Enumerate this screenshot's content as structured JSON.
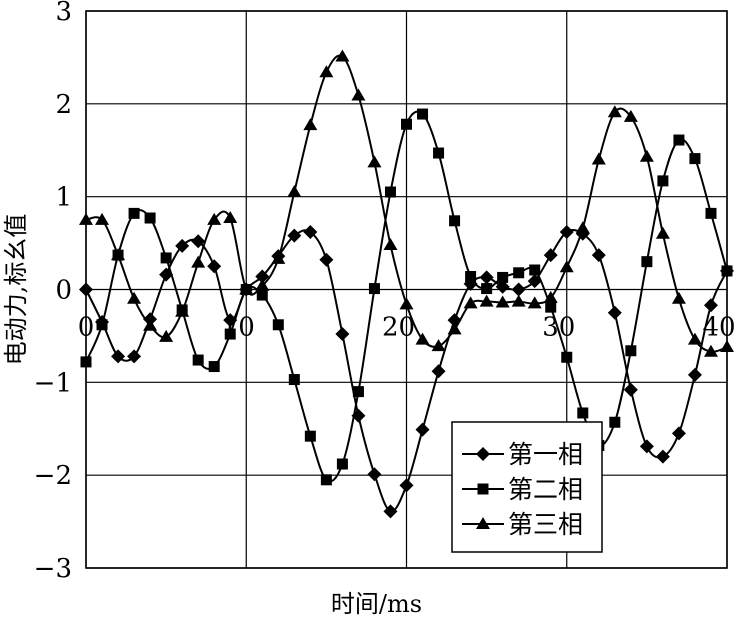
{
  "chart_data": {
    "type": "line",
    "title": "",
    "xlabel": "时间/ms",
    "ylabel": "电动力,标幺值",
    "xlim": [
      0,
      40
    ],
    "ylim": [
      -3,
      3
    ],
    "x_ticks": [
      "0",
      "10",
      "20",
      "30",
      "40"
    ],
    "y_ticks": [
      "3",
      "2",
      "1",
      "0",
      "−1",
      "−2",
      "−3"
    ],
    "grid": true,
    "legend_position": "bottom-right",
    "series": [
      {
        "name": "第一相",
        "marker": "diamond",
        "x": [
          0,
          1,
          2,
          3,
          4,
          5,
          6,
          7,
          8,
          9,
          10,
          11,
          12,
          13,
          14,
          15,
          16,
          17,
          18,
          19,
          20,
          21,
          22,
          23,
          24,
          25,
          26,
          27,
          28,
          29,
          30,
          31,
          32,
          33,
          34,
          35,
          36,
          37,
          38,
          39,
          40
        ],
        "values": [
          0,
          -0.35,
          -0.72,
          -0.72,
          -0.32,
          0.16,
          0.47,
          0.52,
          0.25,
          -0.33,
          0,
          0.14,
          0.36,
          0.58,
          0.62,
          0.32,
          -0.48,
          -1.36,
          -1.99,
          -2.39,
          -2.11,
          -1.51,
          -0.88,
          -0.33,
          0.06,
          0.13,
          0.03,
          0,
          0.09,
          0.37,
          0.62,
          0.6,
          0.37,
          -0.25,
          -1.08,
          -1.69,
          -1.8,
          -1.55,
          -0.92,
          -0.17,
          0.2
        ]
      },
      {
        "name": "第二相",
        "marker": "square",
        "x": [
          0,
          1,
          2,
          3,
          4,
          5,
          6,
          7,
          8,
          9,
          10,
          11,
          12,
          13,
          14,
          15,
          16,
          17,
          18,
          19,
          20,
          21,
          22,
          23,
          24,
          25,
          26,
          27,
          28,
          29,
          30,
          31,
          32,
          33,
          34,
          35,
          36,
          37,
          38,
          39,
          40
        ],
        "values": [
          -0.78,
          -0.38,
          0.37,
          0.82,
          0.77,
          0.34,
          -0.22,
          -0.76,
          -0.83,
          -0.48,
          0,
          -0.06,
          -0.38,
          -0.97,
          -1.58,
          -2.05,
          -1.88,
          -1.1,
          0.01,
          1.05,
          1.78,
          1.89,
          1.47,
          0.74,
          0.14,
          0.01,
          0.13,
          0.18,
          0.21,
          -0.19,
          -0.73,
          -1.33,
          -1.68,
          -1.43,
          -0.66,
          0.3,
          1.17,
          1.61,
          1.41,
          0.82,
          0.2
        ]
      },
      {
        "name": "第三相",
        "marker": "triangle",
        "x": [
          0,
          1,
          2,
          3,
          4,
          5,
          6,
          7,
          8,
          9,
          10,
          11,
          12,
          13,
          14,
          15,
          16,
          17,
          18,
          19,
          20,
          21,
          22,
          23,
          24,
          25,
          26,
          27,
          28,
          29,
          30,
          31,
          32,
          33,
          34,
          35,
          36,
          37,
          38,
          39,
          40
        ],
        "values": [
          0.75,
          0.75,
          0.37,
          -0.1,
          -0.39,
          -0.51,
          -0.24,
          0.29,
          0.75,
          0.77,
          0,
          0.04,
          0.33,
          1.05,
          1.77,
          2.34,
          2.51,
          2.09,
          1.37,
          0.48,
          -0.16,
          -0.54,
          -0.61,
          -0.43,
          -0.15,
          -0.13,
          -0.14,
          -0.13,
          -0.15,
          -0.09,
          0.24,
          0.66,
          1.4,
          1.91,
          1.86,
          1.43,
          0.6,
          -0.1,
          -0.54,
          -0.67,
          -0.62
        ]
      }
    ]
  }
}
